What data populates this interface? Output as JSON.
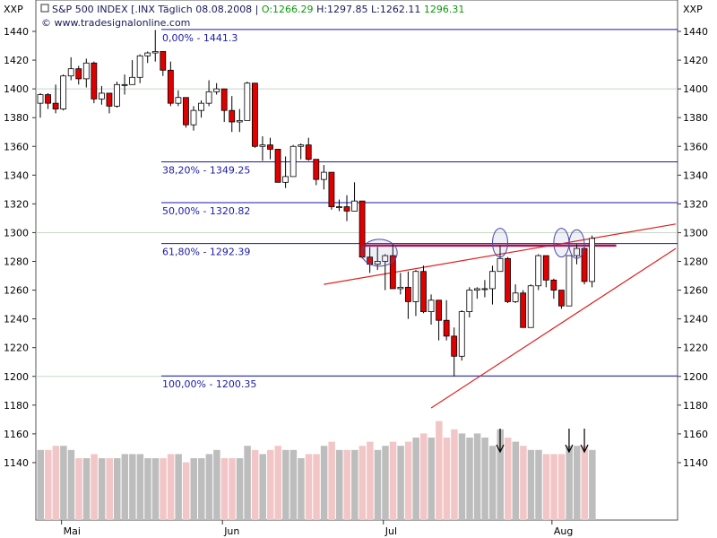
{
  "header": {
    "symbol": "S&P 500 INDEX [.INX",
    "period": "Täglich",
    "date": "08.08.2008",
    "open": "O:1266.29",
    "high": "H:1297.85",
    "low": "L:1262.11",
    "close": "1296.31",
    "source": "www.tradesignalonline.com",
    "left_axis_label": "XXP",
    "right_axis_label": "XXP"
  },
  "colors": {
    "bull": "#ffffff",
    "bear": "#e00000",
    "fib_line": "#1a1aa8",
    "trend_line": "#e02020",
    "resistance": "#b0104a",
    "grid": "#c8d8c8",
    "vol_gray": "#bdbdbd",
    "vol_pink": "#f2c6c6",
    "header_green": "#0a9a0a",
    "header_dark": "#1a1a5a"
  },
  "chart_data": {
    "type": "candlestick",
    "y_range": [
      1120,
      1440
    ],
    "y_ticks": [
      1140,
      1160,
      1180,
      1200,
      1220,
      1240,
      1260,
      1280,
      1300,
      1320,
      1340,
      1360,
      1380,
      1400,
      1420,
      1440
    ],
    "x_labels": [
      {
        "label": "Mai",
        "date": "2008-05-01"
      },
      {
        "label": "Jun",
        "date": "2008-06-02"
      },
      {
        "label": "Jul",
        "date": "2008-07-01"
      },
      {
        "label": "Aug",
        "date": "2008-08-01"
      }
    ],
    "fibonacci": [
      {
        "label": "0,00% - 1441.3",
        "value": 1441.3
      },
      {
        "label": "38,20% - 1349.25",
        "value": 1349.25
      },
      {
        "label": "50,00% - 1320.82",
        "value": 1320.82
      },
      {
        "label": "61,80% - 1292.39",
        "value": 1292.39
      },
      {
        "label": "100,00% - 1200.35",
        "value": 1200.35
      }
    ],
    "resistance": {
      "value": 1291,
      "from": "2008-06-27",
      "to": "2008-08-08"
    },
    "trendlines": [
      {
        "from": {
          "date": "2008-06-19",
          "value": 1264
        },
        "to": {
          "date": "2008-08-29",
          "value": 1306
        }
      },
      {
        "from": {
          "date": "2008-07-10",
          "value": 1178
        },
        "to": {
          "date": "2008-08-29",
          "value": 1289
        }
      }
    ],
    "highlight_circles": [
      {
        "date": "2008-06-30",
        "value": 1286
      },
      {
        "date": "2008-07-23",
        "value": 1293
      },
      {
        "date": "2008-08-04",
        "value": 1293
      },
      {
        "date": "2008-08-06",
        "value": 1292
      }
    ],
    "volume_arrows": [
      "2008-07-23",
      "2008-08-05",
      "2008-08-07"
    ],
    "candles": [
      {
        "date": "2008-04-28",
        "o": 1390,
        "h": 1397,
        "l": 1380,
        "c": 1396
      },
      {
        "date": "2008-04-29",
        "o": 1396,
        "h": 1397,
        "l": 1386,
        "c": 1390
      },
      {
        "date": "2008-04-30",
        "o": 1390,
        "h": 1403,
        "l": 1383,
        "c": 1386
      },
      {
        "date": "2008-05-01",
        "o": 1386,
        "h": 1410,
        "l": 1385,
        "c": 1409
      },
      {
        "date": "2008-05-02",
        "o": 1409,
        "h": 1422,
        "l": 1406,
        "c": 1414
      },
      {
        "date": "2008-05-05",
        "o": 1414,
        "h": 1416,
        "l": 1403,
        "c": 1407
      },
      {
        "date": "2008-05-06",
        "o": 1407,
        "h": 1421,
        "l": 1401,
        "c": 1418
      },
      {
        "date": "2008-05-07",
        "o": 1418,
        "h": 1419,
        "l": 1390,
        "c": 1393
      },
      {
        "date": "2008-05-08",
        "o": 1393,
        "h": 1402,
        "l": 1389,
        "c": 1397
      },
      {
        "date": "2008-05-09",
        "o": 1397,
        "h": 1397,
        "l": 1383,
        "c": 1388
      },
      {
        "date": "2008-05-12",
        "o": 1388,
        "h": 1405,
        "l": 1387,
        "c": 1403
      },
      {
        "date": "2008-05-13",
        "o": 1403,
        "h": 1410,
        "l": 1396,
        "c": 1403
      },
      {
        "date": "2008-05-14",
        "o": 1403,
        "h": 1420,
        "l": 1403,
        "c": 1408
      },
      {
        "date": "2008-05-15",
        "o": 1408,
        "h": 1424,
        "l": 1404,
        "c": 1423
      },
      {
        "date": "2008-05-16",
        "o": 1423,
        "h": 1426,
        "l": 1418,
        "c": 1425
      },
      {
        "date": "2008-05-19",
        "o": 1425,
        "h": 1441,
        "l": 1419,
        "c": 1426
      },
      {
        "date": "2008-05-20",
        "o": 1426,
        "h": 1426,
        "l": 1409,
        "c": 1413
      },
      {
        "date": "2008-05-21",
        "o": 1413,
        "h": 1419,
        "l": 1388,
        "c": 1390
      },
      {
        "date": "2008-05-22",
        "o": 1390,
        "h": 1399,
        "l": 1388,
        "c": 1394
      },
      {
        "date": "2008-05-23",
        "o": 1394,
        "h": 1394,
        "l": 1373,
        "c": 1375
      },
      {
        "date": "2008-05-27",
        "o": 1375,
        "h": 1388,
        "l": 1371,
        "c": 1385
      },
      {
        "date": "2008-05-28",
        "o": 1385,
        "h": 1392,
        "l": 1380,
        "c": 1390
      },
      {
        "date": "2008-05-29",
        "o": 1390,
        "h": 1406,
        "l": 1388,
        "c": 1398
      },
      {
        "date": "2008-05-30",
        "o": 1398,
        "h": 1404,
        "l": 1396,
        "c": 1400
      },
      {
        "date": "2008-06-02",
        "o": 1400,
        "h": 1400,
        "l": 1377,
        "c": 1385
      },
      {
        "date": "2008-06-03",
        "o": 1385,
        "h": 1395,
        "l": 1370,
        "c": 1377
      },
      {
        "date": "2008-06-04",
        "o": 1377,
        "h": 1386,
        "l": 1370,
        "c": 1378
      },
      {
        "date": "2008-06-05",
        "o": 1378,
        "h": 1405,
        "l": 1378,
        "c": 1404
      },
      {
        "date": "2008-06-06",
        "o": 1404,
        "h": 1404,
        "l": 1359,
        "c": 1360
      },
      {
        "date": "2008-06-09",
        "o": 1360,
        "h": 1367,
        "l": 1350,
        "c": 1361
      },
      {
        "date": "2008-06-10",
        "o": 1361,
        "h": 1366,
        "l": 1351,
        "c": 1358
      },
      {
        "date": "2008-06-11",
        "o": 1358,
        "h": 1358,
        "l": 1335,
        "c": 1335
      },
      {
        "date": "2008-06-12",
        "o": 1335,
        "h": 1353,
        "l": 1331,
        "c": 1339
      },
      {
        "date": "2008-06-13",
        "o": 1339,
        "h": 1361,
        "l": 1339,
        "c": 1360
      },
      {
        "date": "2008-06-16",
        "o": 1360,
        "h": 1362,
        "l": 1351,
        "c": 1361
      },
      {
        "date": "2008-06-17",
        "o": 1361,
        "h": 1366,
        "l": 1350,
        "c": 1351
      },
      {
        "date": "2008-06-18",
        "o": 1351,
        "h": 1351,
        "l": 1333,
        "c": 1337
      },
      {
        "date": "2008-06-19",
        "o": 1337,
        "h": 1347,
        "l": 1330,
        "c": 1342
      },
      {
        "date": "2008-06-20",
        "o": 1342,
        "h": 1342,
        "l": 1316,
        "c": 1318
      },
      {
        "date": "2008-06-23",
        "o": 1318,
        "h": 1323,
        "l": 1315,
        "c": 1318
      },
      {
        "date": "2008-06-24",
        "o": 1318,
        "h": 1326,
        "l": 1308,
        "c": 1315
      },
      {
        "date": "2008-06-25",
        "o": 1315,
        "h": 1335,
        "l": 1315,
        "c": 1322
      },
      {
        "date": "2008-06-26",
        "o": 1322,
        "h": 1322,
        "l": 1282,
        "c": 1283
      },
      {
        "date": "2008-06-27",
        "o": 1283,
        "h": 1290,
        "l": 1272,
        "c": 1278
      },
      {
        "date": "2008-06-30",
        "o": 1278,
        "h": 1290,
        "l": 1274,
        "c": 1280
      },
      {
        "date": "2008-07-01",
        "o": 1280,
        "h": 1285,
        "l": 1260,
        "c": 1284
      },
      {
        "date": "2008-07-02",
        "o": 1284,
        "h": 1292,
        "l": 1261,
        "c": 1261
      },
      {
        "date": "2008-07-03",
        "o": 1261,
        "h": 1272,
        "l": 1257,
        "c": 1262
      },
      {
        "date": "2008-07-07",
        "o": 1262,
        "h": 1273,
        "l": 1240,
        "c": 1252
      },
      {
        "date": "2008-07-08",
        "o": 1252,
        "h": 1274,
        "l": 1242,
        "c": 1273
      },
      {
        "date": "2008-07-09",
        "o": 1273,
        "h": 1277,
        "l": 1244,
        "c": 1245
      },
      {
        "date": "2008-07-10",
        "o": 1245,
        "h": 1257,
        "l": 1236,
        "c": 1253
      },
      {
        "date": "2008-07-11",
        "o": 1253,
        "h": 1253,
        "l": 1225,
        "c": 1239
      },
      {
        "date": "2008-07-14",
        "o": 1239,
        "h": 1253,
        "l": 1225,
        "c": 1228
      },
      {
        "date": "2008-07-15",
        "o": 1228,
        "h": 1234,
        "l": 1200,
        "c": 1214
      },
      {
        "date": "2008-07-16",
        "o": 1214,
        "h": 1246,
        "l": 1211,
        "c": 1245
      },
      {
        "date": "2008-07-17",
        "o": 1245,
        "h": 1262,
        "l": 1241,
        "c": 1260
      },
      {
        "date": "2008-07-18",
        "o": 1260,
        "h": 1262,
        "l": 1254,
        "c": 1261
      },
      {
        "date": "2008-07-21",
        "o": 1261,
        "h": 1267,
        "l": 1255,
        "c": 1261
      },
      {
        "date": "2008-07-22",
        "o": 1261,
        "h": 1277,
        "l": 1250,
        "c": 1273
      },
      {
        "date": "2008-07-23",
        "o": 1273,
        "h": 1291,
        "l": 1273,
        "c": 1282
      },
      {
        "date": "2008-07-24",
        "o": 1282,
        "h": 1283,
        "l": 1251,
        "c": 1252
      },
      {
        "date": "2008-07-25",
        "o": 1252,
        "h": 1264,
        "l": 1251,
        "c": 1258
      },
      {
        "date": "2008-07-28",
        "o": 1258,
        "h": 1260,
        "l": 1234,
        "c": 1234
      },
      {
        "date": "2008-07-29",
        "o": 1234,
        "h": 1264,
        "l": 1234,
        "c": 1263
      },
      {
        "date": "2008-07-30",
        "o": 1263,
        "h": 1285,
        "l": 1260,
        "c": 1284
      },
      {
        "date": "2008-07-31",
        "o": 1284,
        "h": 1284,
        "l": 1262,
        "c": 1267
      },
      {
        "date": "2008-08-01",
        "o": 1267,
        "h": 1268,
        "l": 1254,
        "c": 1260
      },
      {
        "date": "2008-08-04",
        "o": 1260,
        "h": 1260,
        "l": 1247,
        "c": 1249
      },
      {
        "date": "2008-08-05",
        "o": 1249,
        "h": 1284,
        "l": 1249,
        "c": 1284
      },
      {
        "date": "2008-08-06",
        "o": 1284,
        "h": 1292,
        "l": 1278,
        "c": 1289
      },
      {
        "date": "2008-08-07",
        "o": 1289,
        "h": 1290,
        "l": 1264,
        "c": 1266
      },
      {
        "date": "2008-08-08",
        "o": 1266,
        "h": 1298,
        "l": 1262,
        "c": 1296
      }
    ],
    "volume": [
      17,
      17,
      18,
      18,
      17,
      15,
      15,
      16,
      15,
      15,
      15,
      16,
      16,
      16,
      15,
      15,
      15,
      16,
      16,
      14,
      15,
      15,
      16,
      17,
      15,
      15,
      15,
      18,
      17,
      16,
      17,
      18,
      17,
      17,
      15,
      16,
      16,
      18,
      19,
      17,
      17,
      17,
      18,
      19,
      17,
      18,
      19,
      18,
      19,
      20,
      21,
      20,
      24,
      20,
      22,
      21,
      20,
      21,
      20,
      18,
      22,
      20,
      19,
      18,
      17,
      17,
      16,
      16,
      16,
      18,
      18,
      18,
      17
    ]
  }
}
